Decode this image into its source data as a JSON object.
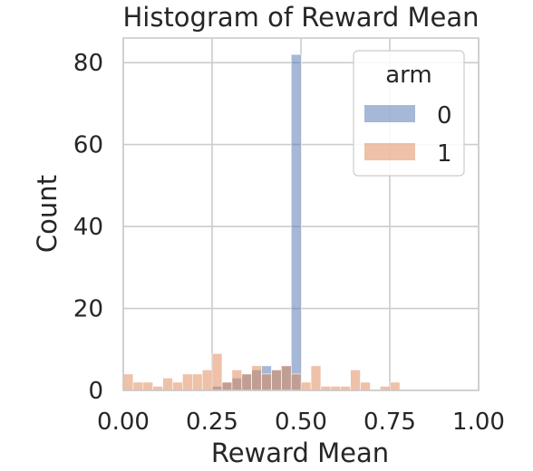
{
  "chart_data": {
    "type": "histogram",
    "title": "Histogram of Reward Mean",
    "xlabel": "Reward Mean",
    "ylabel": "Count",
    "xlim": [
      0.0,
      1.0
    ],
    "ylim": [
      0,
      86
    ],
    "xticks": [
      "0.00",
      "0.25",
      "0.50",
      "0.75",
      "1.00"
    ],
    "xtick_values": [
      0.0,
      0.25,
      0.5,
      0.75,
      1.0
    ],
    "yticks": [
      "0",
      "20",
      "40",
      "60",
      "80"
    ],
    "ytick_values": [
      0,
      20,
      40,
      60,
      80
    ],
    "grid": true,
    "bin_edges_start": 0.0,
    "bin_width": 0.0278,
    "legend": {
      "title": "arm",
      "placement": "top-right"
    },
    "series": [
      {
        "name": "0",
        "color": "#4c72b0",
        "counts": [
          0,
          0,
          0,
          0,
          0,
          0,
          0,
          0,
          0,
          1,
          2,
          3,
          4,
          5,
          6,
          5,
          6,
          82,
          0,
          0,
          0,
          0,
          0,
          0,
          0,
          0,
          0,
          0,
          0,
          0,
          0,
          0,
          0,
          0,
          0,
          0
        ]
      },
      {
        "name": "1",
        "color": "#dd8452",
        "counts": [
          4,
          2,
          2,
          1,
          3,
          2,
          4,
          4,
          5,
          9,
          2,
          5,
          4,
          6,
          4,
          5,
          6,
          4,
          2,
          6,
          1,
          1,
          1,
          5,
          2,
          0,
          1,
          2,
          0,
          0,
          0,
          0,
          0,
          0,
          0,
          0
        ]
      }
    ]
  }
}
